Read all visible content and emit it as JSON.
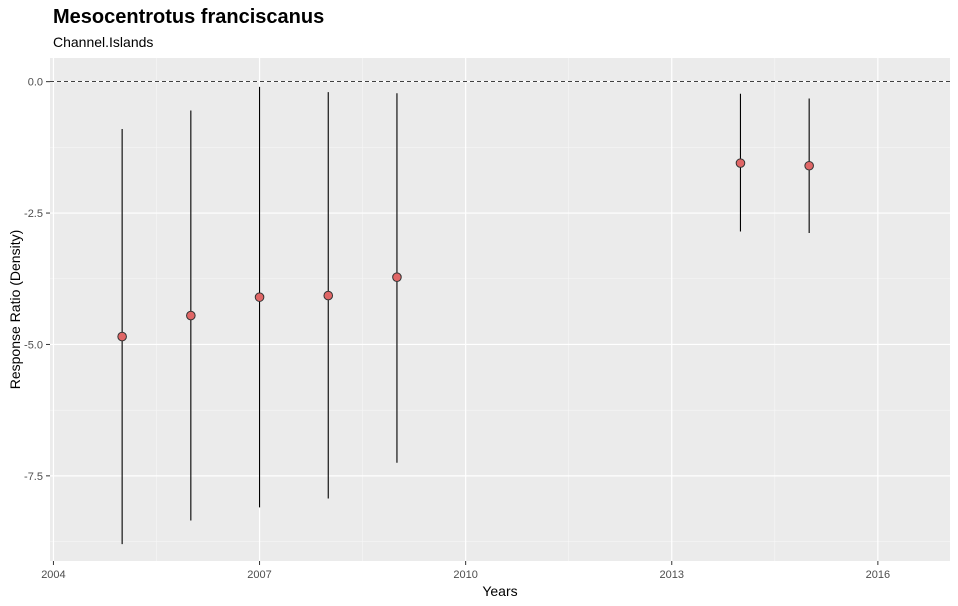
{
  "chart_data": {
    "type": "scatter",
    "title": "Mesocentrotus franciscanus",
    "subtitle": "Channel.Islands",
    "xlabel": "Years",
    "ylabel": "Response Ratio (Density)",
    "xlim": [
      2003.95,
      2017.05
    ],
    "ylim": [
      -9.12,
      0.45
    ],
    "x_ticks": [
      2004,
      2007,
      2010,
      2013,
      2016
    ],
    "x_tick_labels": [
      "2004",
      "2007",
      "2010",
      "2013",
      "2016"
    ],
    "y_ticks": [
      0,
      -2.5,
      -5,
      -7.5
    ],
    "y_tick_labels": [
      "0.0",
      "-2.5",
      "-5.0",
      "-7.5"
    ],
    "reference_line": {
      "y": 0,
      "style": "dashed"
    },
    "grid": true,
    "point_color": "#e06666",
    "point_stroke": "#333333",
    "points": [
      {
        "x": 2005,
        "y": -4.85,
        "ymin": -8.8,
        "ymax": -0.9
      },
      {
        "x": 2006,
        "y": -4.45,
        "ymin": -8.35,
        "ymax": -0.55
      },
      {
        "x": 2007,
        "y": -4.1,
        "ymin": -8.1,
        "ymax": -0.1
      },
      {
        "x": 2008,
        "y": -4.07,
        "ymin": -7.93,
        "ymax": -0.2
      },
      {
        "x": 2009,
        "y": -3.72,
        "ymin": -7.25,
        "ymax": -0.22
      },
      {
        "x": 2014,
        "y": -1.55,
        "ymin": -2.85,
        "ymax": -0.23
      },
      {
        "x": 2015,
        "y": -1.6,
        "ymin": -2.88,
        "ymax": -0.32
      }
    ]
  }
}
